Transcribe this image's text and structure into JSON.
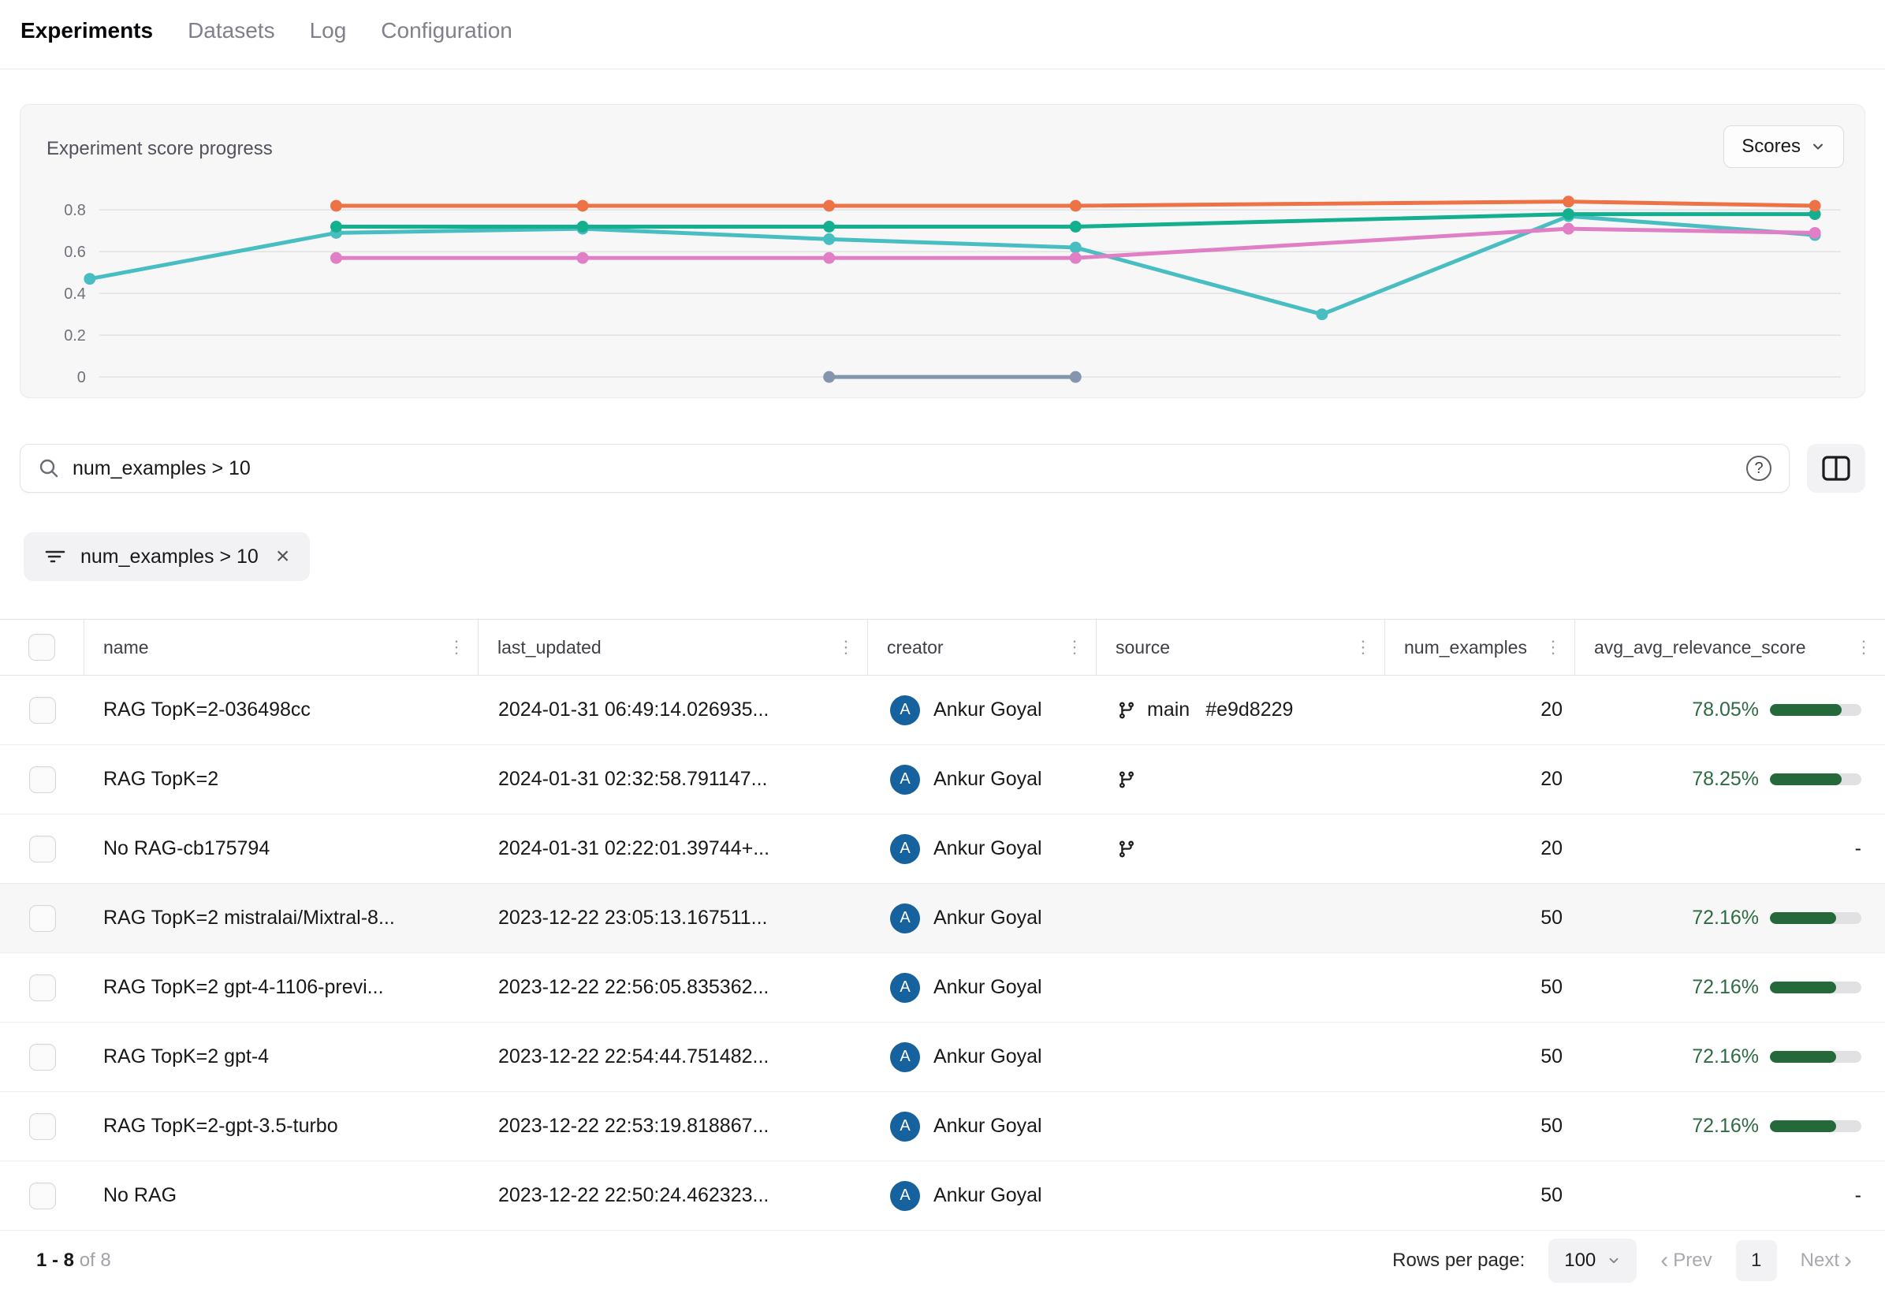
{
  "nav": {
    "tabs": [
      {
        "label": "Experiments",
        "active": true
      },
      {
        "label": "Datasets",
        "active": false
      },
      {
        "label": "Log",
        "active": false
      },
      {
        "label": "Configuration",
        "active": false
      }
    ]
  },
  "chart": {
    "title": "Experiment score progress",
    "scores_button_label": "Scores",
    "chart_data": {
      "type": "line",
      "x_slots": 8,
      "yticks": [
        0,
        0.2,
        0.4,
        0.6,
        0.8
      ],
      "ylim": [
        -0.08,
        0.95
      ],
      "grid": true,
      "legend": "none",
      "series": [
        {
          "name": "gray",
          "color": "#8396AE",
          "points": [
            [
              3,
              0.0
            ],
            [
              4,
              0.0
            ]
          ]
        },
        {
          "name": "cyan",
          "color": "#48BEC2",
          "points": [
            [
              0,
              0.47
            ],
            [
              1,
              0.69
            ],
            [
              2,
              0.71
            ],
            [
              3,
              0.66
            ],
            [
              4,
              0.62
            ],
            [
              5,
              0.3
            ],
            [
              6,
              0.77
            ],
            [
              7,
              0.68
            ]
          ]
        },
        {
          "name": "pink",
          "color": "#E07EC6",
          "points": [
            [
              1,
              0.57
            ],
            [
              2,
              0.57
            ],
            [
              3,
              0.57
            ],
            [
              4,
              0.57
            ],
            [
              6,
              0.71
            ],
            [
              7,
              0.69
            ]
          ]
        },
        {
          "name": "green",
          "color": "#14AF8E",
          "points": [
            [
              1,
              0.72
            ],
            [
              2,
              0.72
            ],
            [
              3,
              0.72
            ],
            [
              4,
              0.72
            ],
            [
              6,
              0.78
            ],
            [
              7,
              0.78
            ]
          ]
        },
        {
          "name": "orange",
          "color": "#ED7246",
          "points": [
            [
              1,
              0.82
            ],
            [
              2,
              0.82
            ],
            [
              3,
              0.82
            ],
            [
              4,
              0.82
            ],
            [
              6,
              0.84
            ],
            [
              7,
              0.82
            ]
          ]
        }
      ]
    }
  },
  "search": {
    "value": "num_examples > 10"
  },
  "filter_chip": {
    "label": "num_examples > 10"
  },
  "table": {
    "columns": [
      {
        "label": "name"
      },
      {
        "label": "last_updated"
      },
      {
        "label": "creator"
      },
      {
        "label": "source"
      },
      {
        "label": "num_examples"
      },
      {
        "label": "avg_avg_relevance_score"
      }
    ],
    "rows": [
      {
        "name": "RAG TopK=2-036498cc",
        "last_updated": "2024-01-31 06:49:14.026935...",
        "creator": "Ankur Goyal",
        "avatar_initial": "A",
        "source_git": true,
        "source_branch": "main",
        "source_commit": "#e9d8229",
        "num_examples": "20",
        "score": "78.05%",
        "score_pct": 78.05,
        "highlight": false
      },
      {
        "name": "RAG TopK=2",
        "last_updated": "2024-01-31 02:32:58.791147...",
        "creator": "Ankur Goyal",
        "avatar_initial": "A",
        "source_git": true,
        "source_branch": "",
        "source_commit": "",
        "num_examples": "20",
        "score": "78.25%",
        "score_pct": 78.25,
        "highlight": false
      },
      {
        "name": "No RAG-cb175794",
        "last_updated": "2024-01-31 02:22:01.39744+...",
        "creator": "Ankur Goyal",
        "avatar_initial": "A",
        "source_git": true,
        "source_branch": "",
        "source_commit": "",
        "num_examples": "20",
        "score": "-",
        "score_pct": null,
        "highlight": false
      },
      {
        "name": "RAG TopK=2 mistralai/Mixtral-8...",
        "last_updated": "2023-12-22 23:05:13.167511...",
        "creator": "Ankur Goyal",
        "avatar_initial": "A",
        "source_git": false,
        "source_branch": "",
        "source_commit": "",
        "num_examples": "50",
        "score": "72.16%",
        "score_pct": 72.16,
        "highlight": true
      },
      {
        "name": "RAG TopK=2 gpt-4-1106-previ...",
        "last_updated": "2023-12-22 22:56:05.835362...",
        "creator": "Ankur Goyal",
        "avatar_initial": "A",
        "source_git": false,
        "source_branch": "",
        "source_commit": "",
        "num_examples": "50",
        "score": "72.16%",
        "score_pct": 72.16,
        "highlight": false
      },
      {
        "name": "RAG TopK=2 gpt-4",
        "last_updated": "2023-12-22 22:54:44.751482...",
        "creator": "Ankur Goyal",
        "avatar_initial": "A",
        "source_git": false,
        "source_branch": "",
        "source_commit": "",
        "num_examples": "50",
        "score": "72.16%",
        "score_pct": 72.16,
        "highlight": false
      },
      {
        "name": "RAG TopK=2-gpt-3.5-turbo",
        "last_updated": "2023-12-22 22:53:19.818867...",
        "creator": "Ankur Goyal",
        "avatar_initial": "A",
        "source_git": false,
        "source_branch": "",
        "source_commit": "",
        "num_examples": "50",
        "score": "72.16%",
        "score_pct": 72.16,
        "highlight": false
      },
      {
        "name": "No RAG",
        "last_updated": "2023-12-22 22:50:24.462323...",
        "creator": "Ankur Goyal",
        "avatar_initial": "A",
        "source_git": false,
        "source_branch": "",
        "source_commit": "",
        "num_examples": "50",
        "score": "-",
        "score_pct": null,
        "highlight": false
      }
    ]
  },
  "footer": {
    "range": "1 - 8",
    "of": "of 8",
    "rows_per_page_label": "Rows per page:",
    "page_size": "100",
    "prev_label": "Prev",
    "page": "1",
    "next_label": "Next"
  },
  "colors": {
    "avatar_blue": "#16629E",
    "score_green_bar": "#25693A",
    "score_green_text": "#2E6B42"
  }
}
